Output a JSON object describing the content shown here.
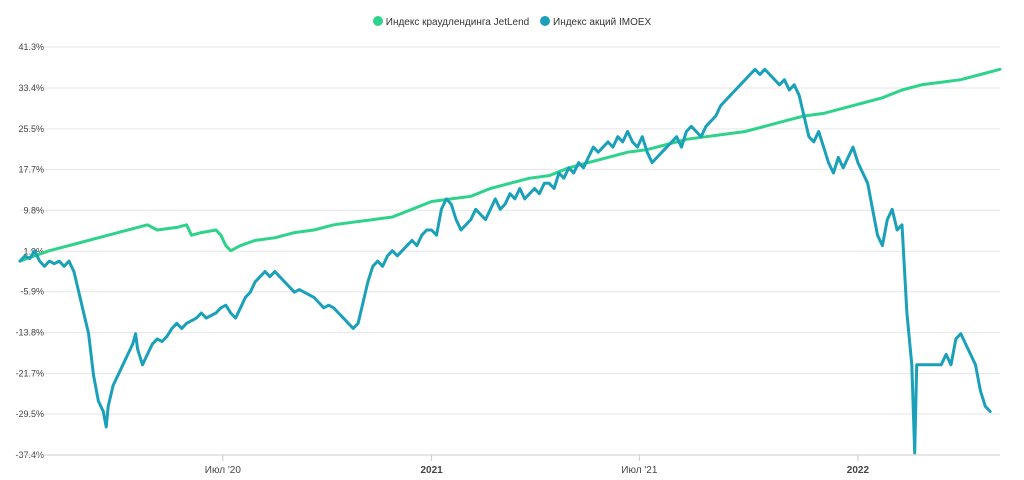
{
  "chart_data": {
    "type": "line",
    "title": "",
    "legend_position": "top-center",
    "grid": true,
    "ylim": [
      -37.4,
      41.3
    ],
    "xlim": [
      0,
      1000
    ],
    "y_ticks": [
      "41.3%",
      "33.4%",
      "25.5%",
      "17.7%",
      "9.8%",
      "1.9%",
      "-5.9%",
      "-13.8%",
      "-21.7%",
      "-29.5%",
      "-37.4%"
    ],
    "y_tick_values": [
      41.3,
      33.4,
      25.5,
      17.7,
      9.8,
      1.9,
      -5.9,
      -13.8,
      -21.7,
      -29.5,
      -37.4
    ],
    "x_ticks": [
      {
        "label": "Июл '20",
        "x": 207,
        "bold": false
      },
      {
        "label": "2021",
        "x": 420,
        "bold": true
      },
      {
        "label": "Июл '21",
        "x": 632,
        "bold": false
      },
      {
        "label": "2022",
        "x": 855,
        "bold": true
      }
    ],
    "series": [
      {
        "name": "Индекс краудлендинга JetLend",
        "color": "#2ed38a",
        "points": [
          [
            0,
            0
          ],
          [
            30,
            2
          ],
          [
            60,
            3.5
          ],
          [
            90,
            5
          ],
          [
            120,
            6.5
          ],
          [
            130,
            7
          ],
          [
            140,
            6
          ],
          [
            160,
            6.5
          ],
          [
            170,
            7
          ],
          [
            175,
            5
          ],
          [
            185,
            5.5
          ],
          [
            200,
            6
          ],
          [
            205,
            5
          ],
          [
            210,
            3
          ],
          [
            215,
            2
          ],
          [
            225,
            3
          ],
          [
            240,
            4
          ],
          [
            260,
            4.5
          ],
          [
            280,
            5.5
          ],
          [
            300,
            6
          ],
          [
            320,
            7
          ],
          [
            340,
            7.5
          ],
          [
            360,
            8
          ],
          [
            380,
            8.5
          ],
          [
            400,
            10
          ],
          [
            420,
            11.5
          ],
          [
            440,
            12
          ],
          [
            460,
            12.5
          ],
          [
            480,
            14
          ],
          [
            500,
            15
          ],
          [
            520,
            16
          ],
          [
            540,
            16.5
          ],
          [
            560,
            18
          ],
          [
            580,
            19
          ],
          [
            600,
            20
          ],
          [
            620,
            21
          ],
          [
            640,
            21.5
          ],
          [
            660,
            22.5
          ],
          [
            680,
            23.5
          ],
          [
            700,
            24
          ],
          [
            720,
            24.5
          ],
          [
            740,
            25
          ],
          [
            760,
            26
          ],
          [
            780,
            27
          ],
          [
            800,
            28
          ],
          [
            820,
            28.5
          ],
          [
            840,
            29.5
          ],
          [
            860,
            30.5
          ],
          [
            880,
            31.5
          ],
          [
            900,
            33
          ],
          [
            920,
            34
          ],
          [
            940,
            34.5
          ],
          [
            960,
            35
          ],
          [
            980,
            36
          ],
          [
            1000,
            37
          ]
        ]
      },
      {
        "name": "Индекс акций IMOEX",
        "color": "#1aa1b9",
        "points": [
          [
            0,
            0
          ],
          [
            5,
            1
          ],
          [
            10,
            0.5
          ],
          [
            15,
            2
          ],
          [
            20,
            0
          ],
          [
            25,
            -1
          ],
          [
            30,
            0
          ],
          [
            35,
            -0.5
          ],
          [
            40,
            0
          ],
          [
            45,
            -1
          ],
          [
            50,
            0
          ],
          [
            55,
            -2
          ],
          [
            60,
            -6
          ],
          [
            65,
            -10
          ],
          [
            70,
            -14
          ],
          [
            75,
            -22
          ],
          [
            80,
            -27
          ],
          [
            85,
            -29
          ],
          [
            88,
            -32
          ],
          [
            90,
            -28
          ],
          [
            95,
            -24
          ],
          [
            100,
            -22
          ],
          [
            105,
            -20
          ],
          [
            110,
            -18
          ],
          [
            115,
            -16
          ],
          [
            118,
            -14
          ],
          [
            120,
            -17
          ],
          [
            125,
            -20
          ],
          [
            130,
            -18
          ],
          [
            135,
            -16
          ],
          [
            140,
            -15
          ],
          [
            145,
            -15.5
          ],
          [
            150,
            -14.5
          ],
          [
            155,
            -13
          ],
          [
            160,
            -12
          ],
          [
            165,
            -13
          ],
          [
            170,
            -12
          ],
          [
            175,
            -11.5
          ],
          [
            180,
            -11
          ],
          [
            185,
            -10
          ],
          [
            190,
            -11
          ],
          [
            195,
            -10.5
          ],
          [
            200,
            -10
          ],
          [
            205,
            -9
          ],
          [
            210,
            -8.5
          ],
          [
            215,
            -10
          ],
          [
            220,
            -11
          ],
          [
            225,
            -9
          ],
          [
            230,
            -7
          ],
          [
            235,
            -6
          ],
          [
            240,
            -4
          ],
          [
            245,
            -3
          ],
          [
            250,
            -2
          ],
          [
            255,
            -3
          ],
          [
            260,
            -2
          ],
          [
            265,
            -3
          ],
          [
            270,
            -4
          ],
          [
            275,
            -5
          ],
          [
            280,
            -6
          ],
          [
            285,
            -5.5
          ],
          [
            290,
            -6
          ],
          [
            295,
            -6.5
          ],
          [
            300,
            -7
          ],
          [
            305,
            -8
          ],
          [
            310,
            -9
          ],
          [
            315,
            -8.5
          ],
          [
            320,
            -9
          ],
          [
            325,
            -10
          ],
          [
            330,
            -11
          ],
          [
            335,
            -12
          ],
          [
            340,
            -13
          ],
          [
            345,
            -12
          ],
          [
            350,
            -8
          ],
          [
            355,
            -4
          ],
          [
            360,
            -1
          ],
          [
            365,
            0
          ],
          [
            370,
            -1
          ],
          [
            375,
            1
          ],
          [
            380,
            2
          ],
          [
            385,
            1
          ],
          [
            390,
            2
          ],
          [
            395,
            3
          ],
          [
            400,
            4
          ],
          [
            405,
            3
          ],
          [
            410,
            5
          ],
          [
            415,
            6
          ],
          [
            420,
            6
          ],
          [
            425,
            5
          ],
          [
            430,
            10
          ],
          [
            435,
            12
          ],
          [
            440,
            11
          ],
          [
            445,
            8
          ],
          [
            450,
            6
          ],
          [
            455,
            7
          ],
          [
            460,
            8
          ],
          [
            465,
            10
          ],
          [
            470,
            9
          ],
          [
            475,
            8
          ],
          [
            480,
            10
          ],
          [
            485,
            12
          ],
          [
            490,
            10
          ],
          [
            495,
            11
          ],
          [
            500,
            13
          ],
          [
            505,
            12
          ],
          [
            510,
            14
          ],
          [
            515,
            12
          ],
          [
            520,
            13
          ],
          [
            525,
            14
          ],
          [
            530,
            13
          ],
          [
            535,
            15
          ],
          [
            540,
            15
          ],
          [
            545,
            14
          ],
          [
            550,
            17
          ],
          [
            555,
            16
          ],
          [
            560,
            18
          ],
          [
            565,
            17
          ],
          [
            570,
            19
          ],
          [
            575,
            18
          ],
          [
            580,
            20
          ],
          [
            585,
            22
          ],
          [
            590,
            21
          ],
          [
            595,
            22
          ],
          [
            600,
            23
          ],
          [
            605,
            22
          ],
          [
            610,
            24
          ],
          [
            615,
            23
          ],
          [
            620,
            25
          ],
          [
            625,
            23
          ],
          [
            630,
            22
          ],
          [
            635,
            24
          ],
          [
            640,
            21
          ],
          [
            645,
            19
          ],
          [
            650,
            20
          ],
          [
            655,
            21
          ],
          [
            660,
            22
          ],
          [
            665,
            23
          ],
          [
            670,
            24
          ],
          [
            675,
            22
          ],
          [
            680,
            25
          ],
          [
            685,
            26
          ],
          [
            690,
            25
          ],
          [
            695,
            24
          ],
          [
            700,
            26
          ],
          [
            705,
            27
          ],
          [
            710,
            28
          ],
          [
            715,
            30
          ],
          [
            720,
            31
          ],
          [
            725,
            32
          ],
          [
            730,
            33
          ],
          [
            735,
            34
          ],
          [
            740,
            35
          ],
          [
            745,
            36
          ],
          [
            750,
            37
          ],
          [
            755,
            36
          ],
          [
            760,
            37
          ],
          [
            765,
            36
          ],
          [
            770,
            35
          ],
          [
            775,
            34
          ],
          [
            780,
            35
          ],
          [
            785,
            33
          ],
          [
            790,
            34
          ],
          [
            795,
            32
          ],
          [
            800,
            28
          ],
          [
            805,
            24
          ],
          [
            810,
            23
          ],
          [
            815,
            25
          ],
          [
            820,
            22
          ],
          [
            825,
            19
          ],
          [
            830,
            17
          ],
          [
            835,
            20
          ],
          [
            840,
            18
          ],
          [
            845,
            20
          ],
          [
            850,
            22
          ],
          [
            855,
            19
          ],
          [
            860,
            17
          ],
          [
            865,
            15
          ],
          [
            870,
            10
          ],
          [
            875,
            5
          ],
          [
            880,
            3
          ],
          [
            885,
            8
          ],
          [
            890,
            10
          ],
          [
            895,
            6
          ],
          [
            900,
            7
          ],
          [
            905,
            -10
          ],
          [
            910,
            -20
          ],
          [
            913,
            -37
          ],
          [
            915,
            -20
          ],
          [
            920,
            -20
          ],
          [
            930,
            -20
          ],
          [
            940,
            -20
          ],
          [
            945,
            -18
          ],
          [
            950,
            -20
          ],
          [
            955,
            -15
          ],
          [
            960,
            -14
          ],
          [
            965,
            -16
          ],
          [
            970,
            -18
          ],
          [
            975,
            -20
          ],
          [
            980,
            -25
          ],
          [
            985,
            -28
          ],
          [
            990,
            -29
          ]
        ]
      }
    ]
  }
}
